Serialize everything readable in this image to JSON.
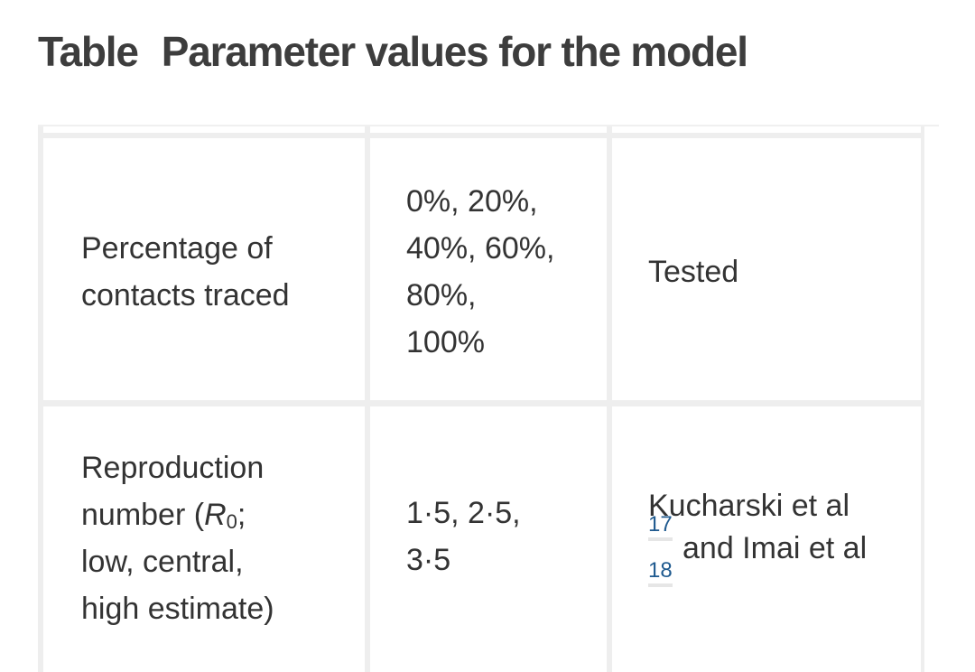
{
  "table": {
    "label": "Table",
    "title": "Parameter values for the model"
  },
  "rows": [
    {
      "parameter": [
        "Percentage of",
        "contacts traced"
      ],
      "values": [
        "0%, 20%,",
        "40%, 60%,",
        "80%,",
        "100%"
      ],
      "source": "Tested"
    },
    {
      "parameter_line1": "Reproduction",
      "parameter_line2_prefix": "number (",
      "parameter_symbol": "R",
      "parameter_symbol_sub": "0",
      "parameter_line2_suffix": ";",
      "parameter_line3": "low, central,",
      "parameter_line4": "high estimate)",
      "values": [
        "1·5, 2·5,",
        "3·5"
      ],
      "source_line1": "Kucharski et al",
      "ref1": "17",
      "source_line2": "and Imai et al",
      "ref2": "18"
    }
  ]
}
